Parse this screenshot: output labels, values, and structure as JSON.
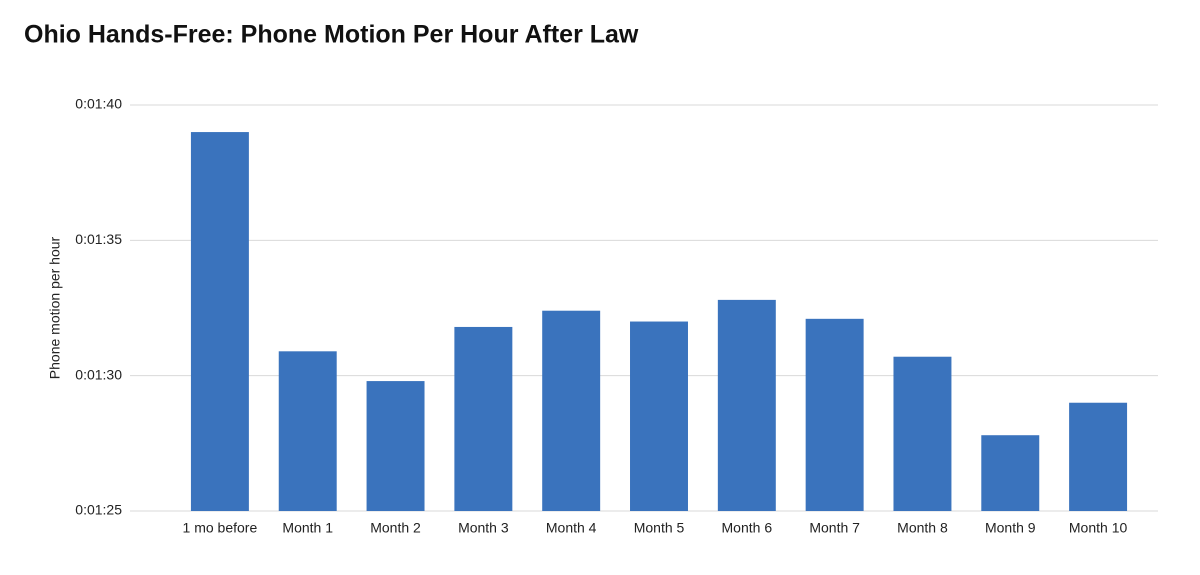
{
  "chart_data": {
    "type": "bar",
    "title": "Ohio Hands-Free: Phone Motion Per Hour After Law",
    "y_label": "Phone motion per hour",
    "categories": [
      "1 mo before",
      "Month 1",
      "Month 2",
      "Month 3",
      "Month 4",
      "Month 5",
      "Month 6",
      "Month 7",
      "Month 8",
      "Month 9",
      "Month 10"
    ],
    "values": [
      99.0,
      90.9,
      89.8,
      91.8,
      92.4,
      92.0,
      92.8,
      92.1,
      90.7,
      87.8,
      89.0
    ],
    "color": "#3a73bd",
    "ylim": [
      85,
      100
    ],
    "yticks": [
      {
        "value": 85,
        "label": "0:01:25"
      },
      {
        "value": 90,
        "label": "0:01:30"
      },
      {
        "value": 95,
        "label": "0:01:35"
      },
      {
        "value": 100,
        "label": "0:01:40"
      }
    ],
    "grid": true
  }
}
